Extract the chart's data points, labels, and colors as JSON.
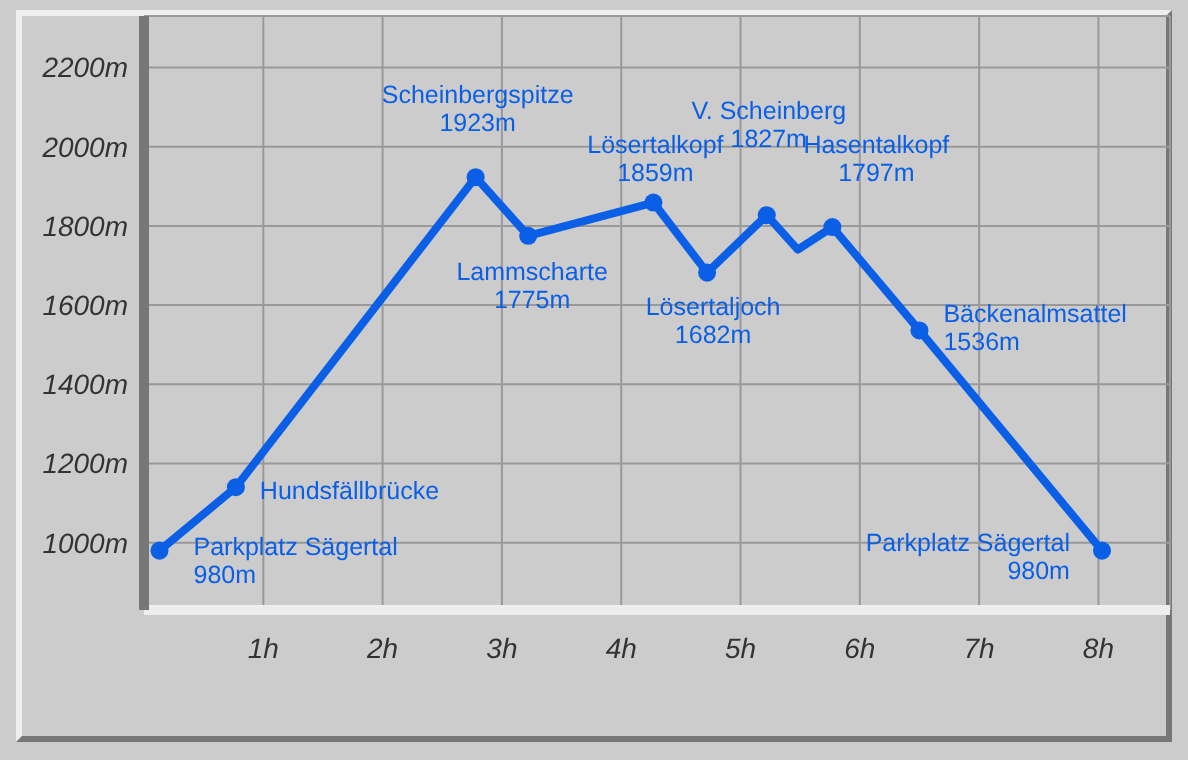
{
  "chart_data": {
    "type": "line",
    "grid": true,
    "line_style": "solid",
    "xlim": [
      0,
      8.6
    ],
    "ylim": [
      830,
      2330
    ],
    "xticks": [
      {
        "value": 1,
        "label": "1h"
      },
      {
        "value": 2,
        "label": "2h"
      },
      {
        "value": 3,
        "label": "3h"
      },
      {
        "value": 4,
        "label": "4h"
      },
      {
        "value": 5,
        "label": "5h"
      },
      {
        "value": 6,
        "label": "6h"
      },
      {
        "value": 7,
        "label": "7h"
      },
      {
        "value": 8,
        "label": "8h"
      }
    ],
    "yticks": [
      {
        "value": 1000,
        "label": "1000m"
      },
      {
        "value": 1200,
        "label": "1200m"
      },
      {
        "value": 1400,
        "label": "1400m"
      },
      {
        "value": 1600,
        "label": "1600m"
      },
      {
        "value": 1800,
        "label": "1800m"
      },
      {
        "value": 2000,
        "label": "2000m"
      },
      {
        "value": 2200,
        "label": "2200m"
      }
    ],
    "series": [
      {
        "marker": "none",
        "color": "#0a5fe6",
        "x": [
          0.13,
          0.77,
          2.78,
          3.22,
          4.27,
          4.72,
          5.22,
          5.48,
          5.77,
          6.5,
          8.03
        ],
        "values": [
          980,
          1140,
          1923,
          1775,
          1859,
          1682,
          1827,
          1740,
          1797,
          1536,
          980
        ]
      },
      {
        "type": "scatter",
        "marker": "circle",
        "color": "#0a5fe6",
        "x": [
          0.13,
          0.77,
          2.78,
          3.22,
          4.27,
          4.72,
          5.22,
          5.77,
          6.5,
          8.03
        ],
        "values": [
          980,
          1140,
          1923,
          1775,
          1859,
          1682,
          1827,
          1797,
          1536,
          980
        ]
      }
    ],
    "annotations": [
      {
        "text": "Parkplatz Sägertal\n980m",
        "x": 0.13,
        "y": 980
      },
      {
        "text": "Hundsfällbrücke",
        "x": 0.77,
        "y": 1140
      },
      {
        "text": "Scheinbergspitze\n1923m",
        "x": 2.78,
        "y": 1923
      },
      {
        "text": "Lammscharte\n1775m",
        "x": 3.22,
        "y": 1775
      },
      {
        "text": "Lösertalkopf\n1859m",
        "x": 4.27,
        "y": 1859
      },
      {
        "text": "Lösertaljoch\n1682m",
        "x": 4.72,
        "y": 1682
      },
      {
        "text": "V. Scheinberg\n1827m",
        "x": 5.22,
        "y": 1827
      },
      {
        "text": "Hasentalkopf\n1797m",
        "x": 5.77,
        "y": 1797
      },
      {
        "text": "Bäckenalmsattel\n1536m",
        "x": 6.5,
        "y": 1536
      },
      {
        "text": "Parkplatz Sägertal\n980m",
        "x": 8.03,
        "y": 980
      }
    ]
  }
}
